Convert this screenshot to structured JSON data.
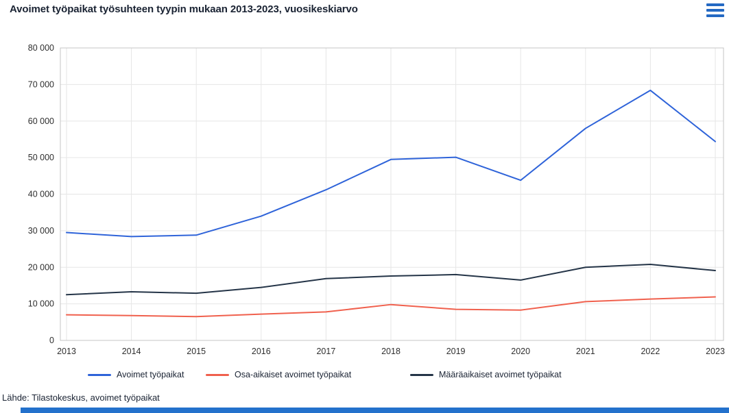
{
  "header": {
    "title": "Avoimet työpaikat työsuhteen tyypin mukaan 2013-2023, vuosikeskiarvo",
    "menu_color": "#2469c3"
  },
  "chart_data": {
    "type": "line",
    "title": "Avoimet työpaikat työsuhteen tyypin mukaan 2013-2023, vuosikeskiarvo",
    "x": [
      2013,
      2014,
      2015,
      2016,
      2017,
      2018,
      2019,
      2020,
      2021,
      2022,
      2023
    ],
    "series": [
      {
        "name": "Avoimet työpaikat",
        "color": "#2e63d9",
        "values": [
          29500,
          28400,
          28800,
          34000,
          41200,
          49500,
          50100,
          43800,
          58000,
          68400,
          54400
        ]
      },
      {
        "name": "Osa-aikaiset avoimet työpaikat",
        "color": "#f0604d",
        "values": [
          7000,
          6800,
          6500,
          7200,
          7800,
          9800,
          8500,
          8300,
          10600,
          11300,
          11900
        ]
      },
      {
        "name": "Määräaikaiset avoimet työpaikat",
        "color": "#243447",
        "values": [
          12500,
          13300,
          12900,
          14500,
          16900,
          17600,
          18000,
          16500,
          20000,
          20800,
          19100
        ]
      }
    ],
    "xlabel": "",
    "ylabel": "",
    "ylim": [
      0,
      80000
    ],
    "ytick_step": 10000,
    "grid": true,
    "legend_position": "bottom"
  },
  "footer": {
    "source": "Lähde: Tilastokeskus, avoimet työpaikat",
    "bar_color": "#2371cc"
  }
}
